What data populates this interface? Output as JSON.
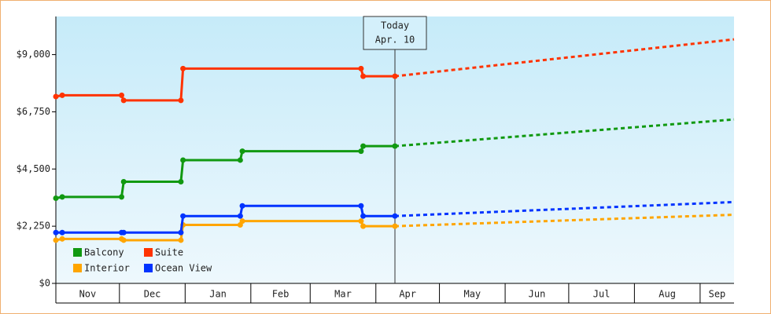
{
  "chart_data": {
    "type": "line",
    "ylim": [
      0,
      10500
    ],
    "yticks": [
      {
        "value": 0,
        "label": "$0"
      },
      {
        "value": 2250,
        "label": "$2,250"
      },
      {
        "value": 4500,
        "label": "$4,500"
      },
      {
        "value": 6750,
        "label": "$6,750"
      },
      {
        "value": 9000,
        "label": "$9,000"
      }
    ],
    "xlim": [
      0,
      320
    ],
    "xticks": [
      {
        "value": 0,
        "label": "Nov"
      },
      {
        "value": 30,
        "label": "Dec"
      },
      {
        "value": 61,
        "label": "Jan"
      },
      {
        "value": 92,
        "label": "Feb"
      },
      {
        "value": 120,
        "label": "Mar"
      },
      {
        "value": 151,
        "label": "Apr"
      },
      {
        "value": 181,
        "label": "May"
      },
      {
        "value": 212,
        "label": "Jun"
      },
      {
        "value": 242,
        "label": "Jul"
      },
      {
        "value": 273,
        "label": "Aug"
      },
      {
        "value": 304,
        "label": "Sep"
      }
    ],
    "legend_position": "lower left",
    "annotation": {
      "x": 160,
      "label_lines": [
        "Today",
        "Apr. 10"
      ]
    },
    "series": [
      {
        "name": "Balcony",
        "color": "#119911",
        "x": [
          0,
          3,
          31,
          32,
          59,
          60,
          87,
          88,
          144,
          145,
          160
        ],
        "values": [
          3350,
          3400,
          3400,
          4000,
          4000,
          4850,
          4850,
          5200,
          5200,
          5400,
          5400
        ],
        "forecast": {
          "x": [
            160,
            320
          ],
          "values": [
            5400,
            6450
          ]
        }
      },
      {
        "name": "Suite",
        "color": "#ff3300",
        "x": [
          0,
          3,
          31,
          32,
          59,
          60,
          144,
          145,
          160
        ],
        "values": [
          7350,
          7400,
          7400,
          7200,
          7200,
          8450,
          8450,
          8150,
          8150
        ],
        "forecast": {
          "x": [
            160,
            320
          ],
          "values": [
            8150,
            9600
          ]
        }
      },
      {
        "name": "Interior",
        "color": "#ffa500",
        "x": [
          0,
          3,
          31,
          32,
          59,
          60,
          87,
          88,
          144,
          145,
          160
        ],
        "values": [
          1700,
          1750,
          1750,
          1700,
          1700,
          2300,
          2300,
          2450,
          2450,
          2250,
          2250
        ],
        "forecast": {
          "x": [
            160,
            320
          ],
          "values": [
            2250,
            2700
          ]
        }
      },
      {
        "name": "Ocean View",
        "color": "#0033ff",
        "x": [
          0,
          3,
          31,
          32,
          59,
          60,
          87,
          88,
          144,
          145,
          160
        ],
        "values": [
          2000,
          2000,
          2000,
          2000,
          2000,
          2650,
          2650,
          3050,
          3050,
          2650,
          2650
        ],
        "forecast": {
          "x": [
            160,
            320
          ],
          "values": [
            2650,
            3200
          ]
        }
      }
    ]
  }
}
